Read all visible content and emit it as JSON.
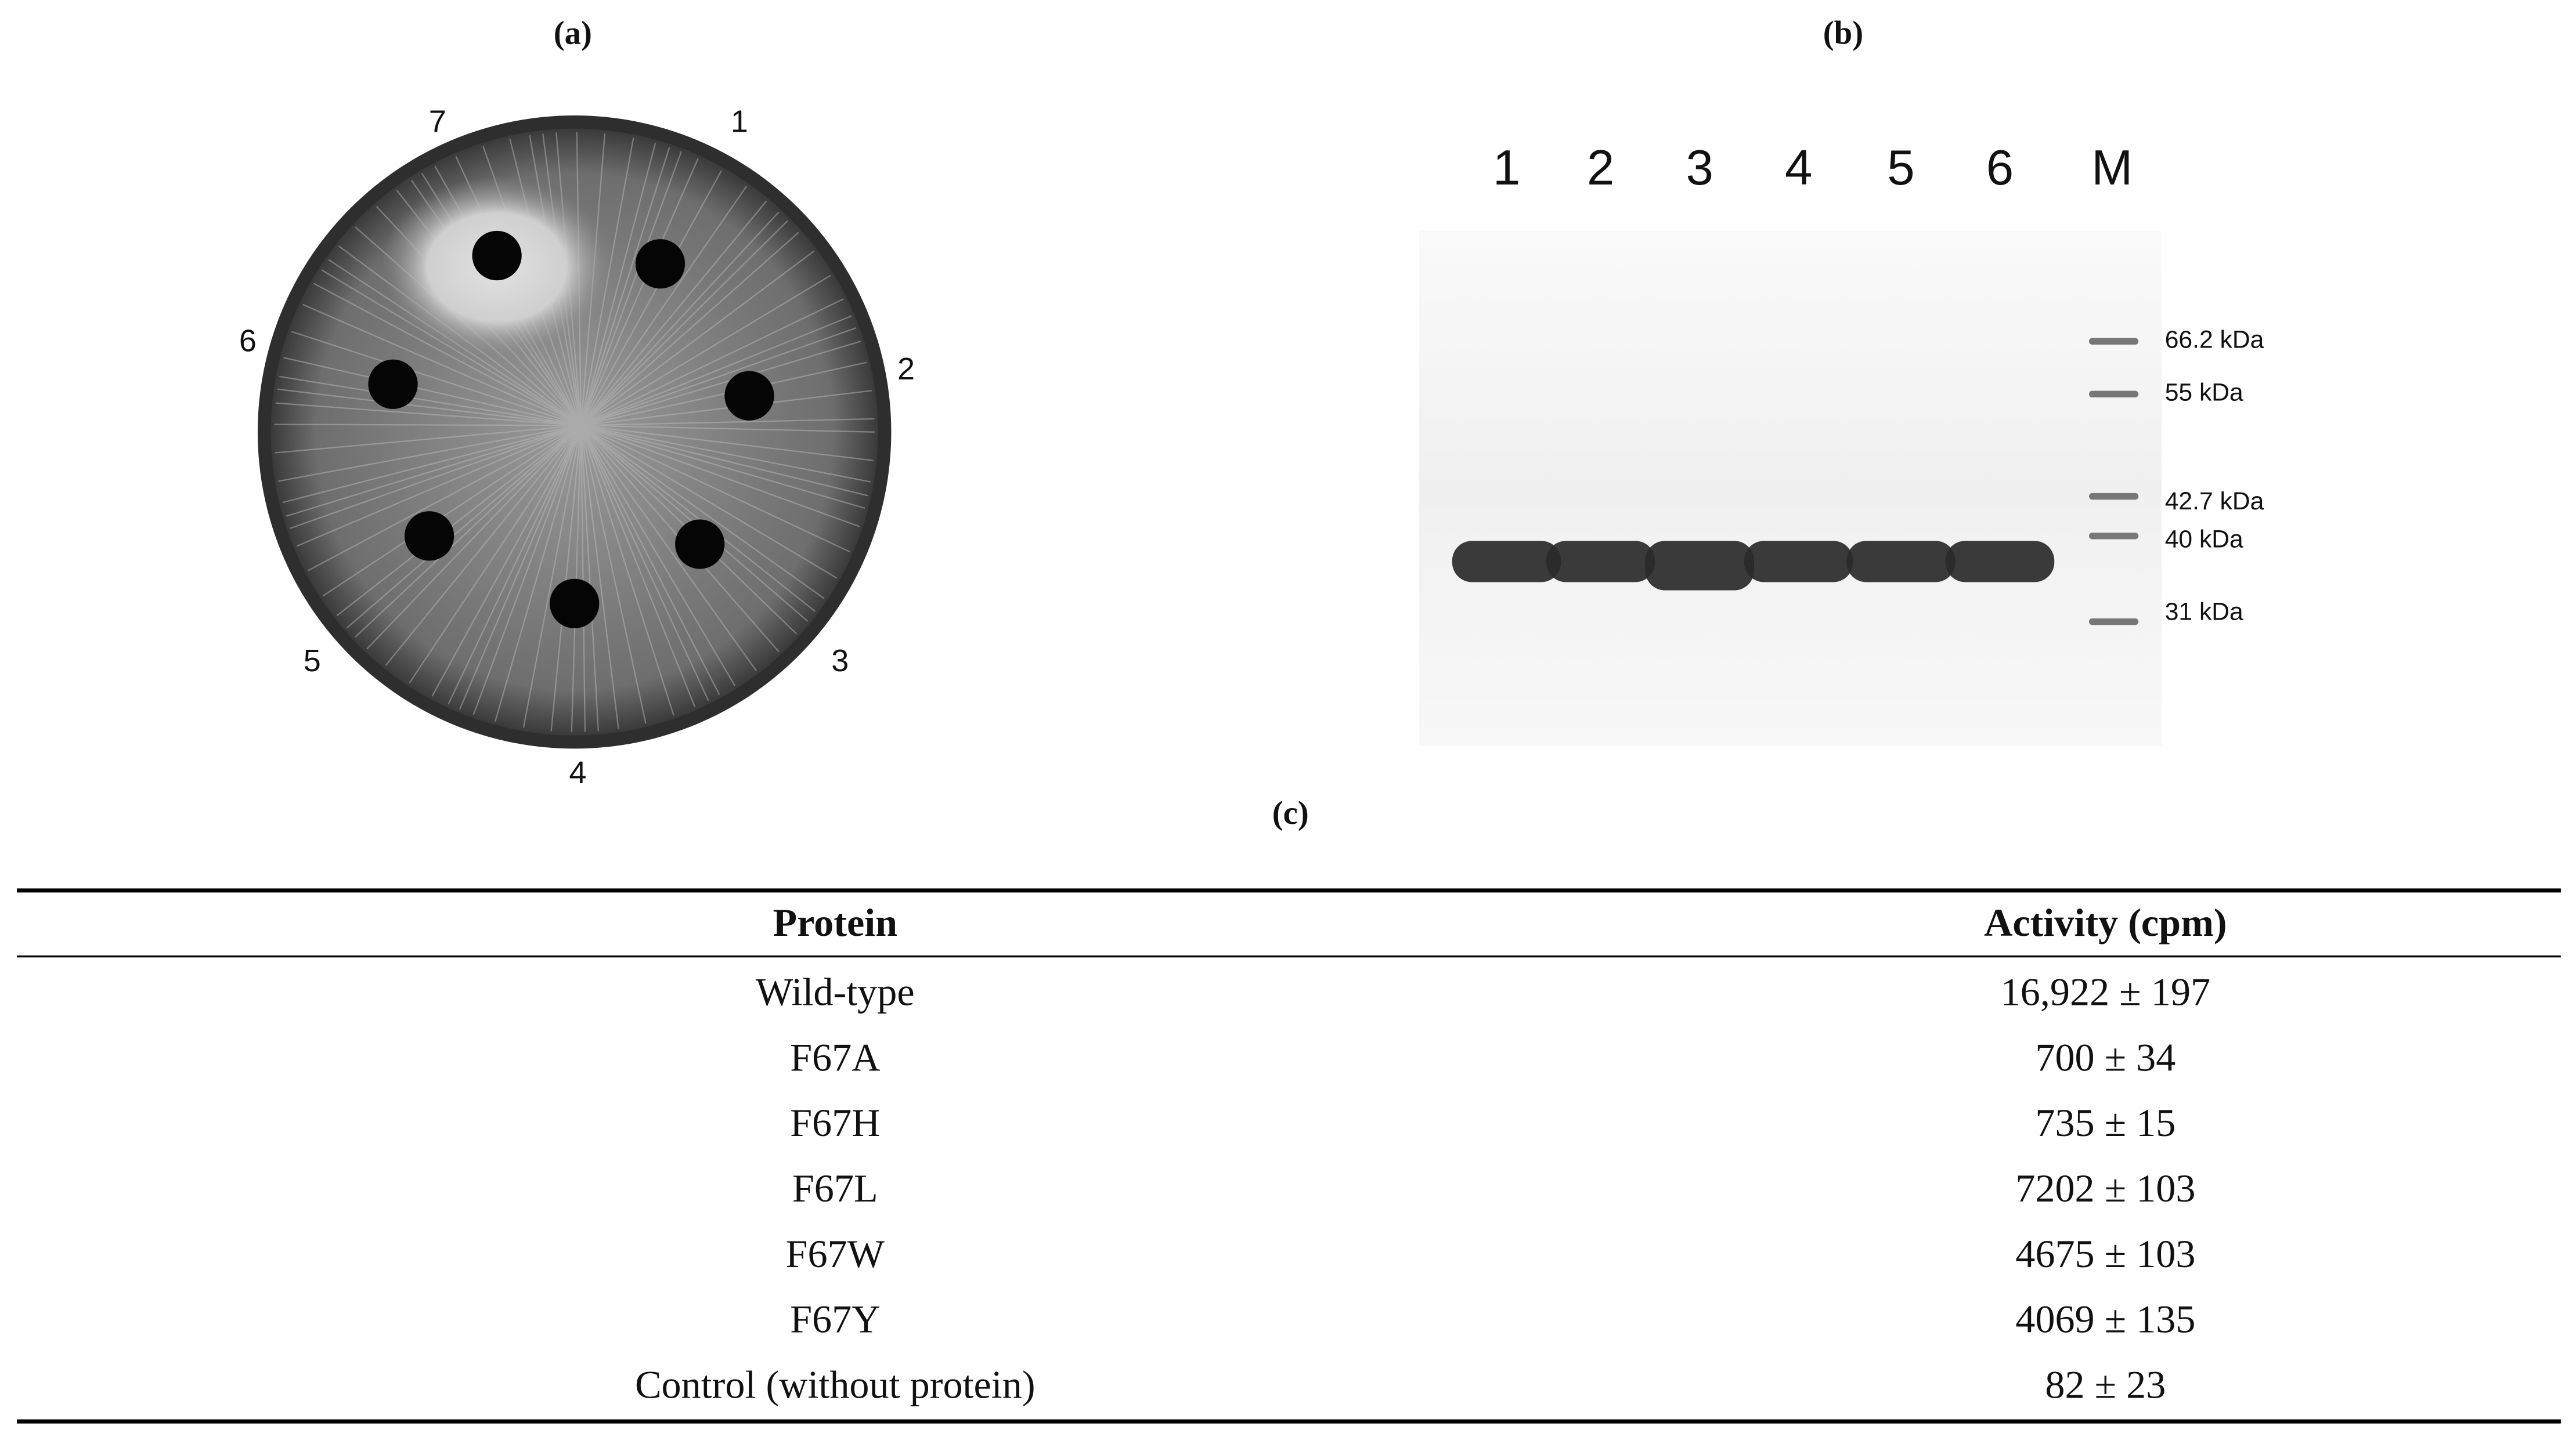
{
  "panel_a": {
    "label": "(a)",
    "well_labels": [
      "1",
      "2",
      "3",
      "4",
      "5",
      "6",
      "7"
    ]
  },
  "panel_b": {
    "label": "(b)",
    "lane_labels": [
      "1",
      "2",
      "3",
      "4",
      "5",
      "6",
      "M"
    ],
    "marker_labels": [
      "66.2 kDa",
      "55 kDa",
      "42.7 kDa",
      "40 kDa",
      "31 kDa"
    ]
  },
  "panel_c": {
    "label": "(c)",
    "table": {
      "columns": [
        "Protein",
        "Activity (cpm)"
      ],
      "rows": [
        [
          "Wild-type",
          "16,922 ± 197"
        ],
        [
          "F67A",
          "700 ± 34"
        ],
        [
          "F67H",
          "735 ± 15"
        ],
        [
          "F67L",
          "7202 ± 103"
        ],
        [
          "F67W",
          "4675 ± 103"
        ],
        [
          "F67Y",
          "4069 ± 135"
        ],
        [
          "Control (without protein)",
          "82 ± 23"
        ]
      ]
    }
  }
}
